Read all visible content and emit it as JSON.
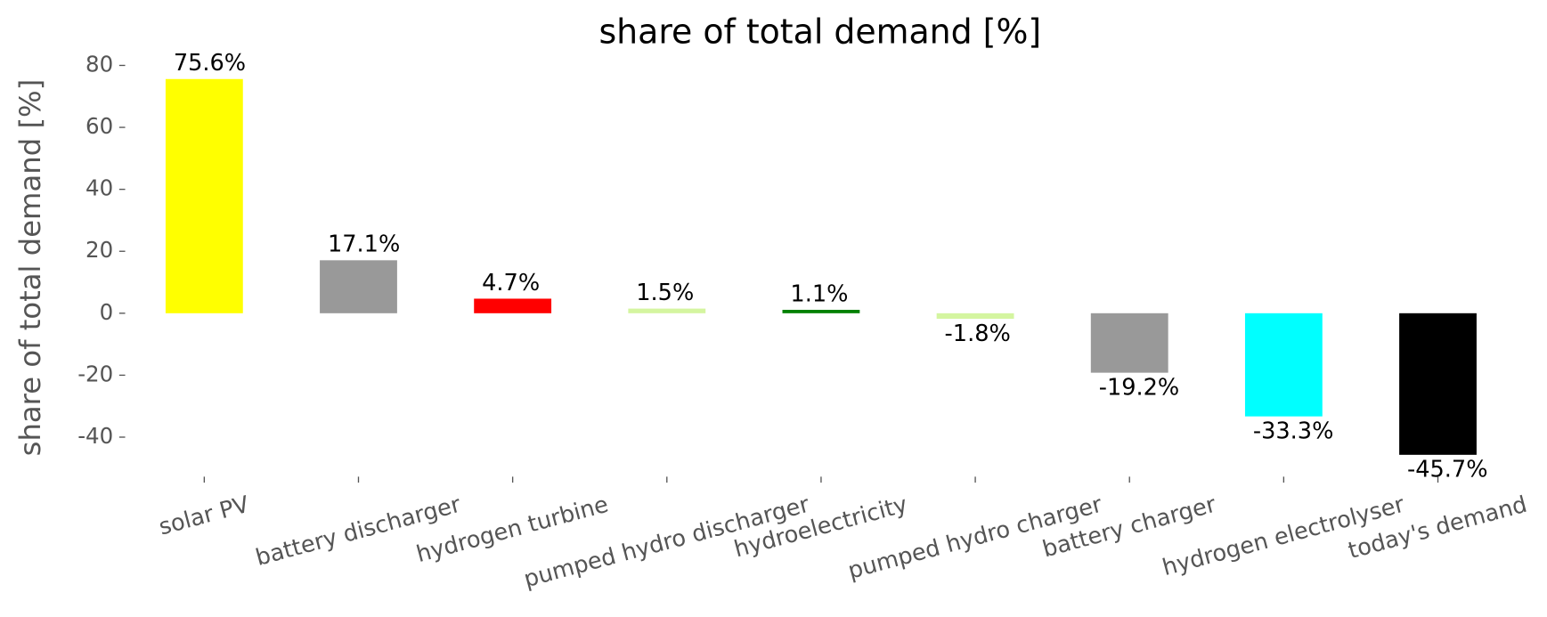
{
  "chart_data": {
    "type": "bar",
    "title": "share of total demand [%]",
    "ylabel": "share of total demand [%]",
    "categories": [
      "solar PV",
      "battery discharger",
      "hydrogen turbine",
      "pumped hydro discharger",
      "hydroelectricity",
      "pumped hydro charger",
      "battery charger",
      "hydrogen electrolyser",
      "today's demand"
    ],
    "values": [
      75.6,
      17.1,
      4.7,
      1.5,
      1.1,
      -1.8,
      -19.2,
      -33.3,
      -45.7
    ],
    "value_labels": [
      "75.6%",
      "17.1%",
      "4.7%",
      "1.5%",
      "1.1%",
      "-1.8%",
      "-19.2%",
      "-33.3%",
      "-45.7%"
    ],
    "colors": [
      "#ffff00",
      "#999999",
      "#ff0000",
      "#d4f5a0",
      "#008000",
      "#d4f5a0",
      "#999999",
      "#00ffff",
      "#000000"
    ],
    "ylim": [
      -53.4,
      83.2
    ],
    "yticks": [
      -40,
      -20,
      0,
      20,
      40,
      60,
      80
    ],
    "grid": false
  }
}
